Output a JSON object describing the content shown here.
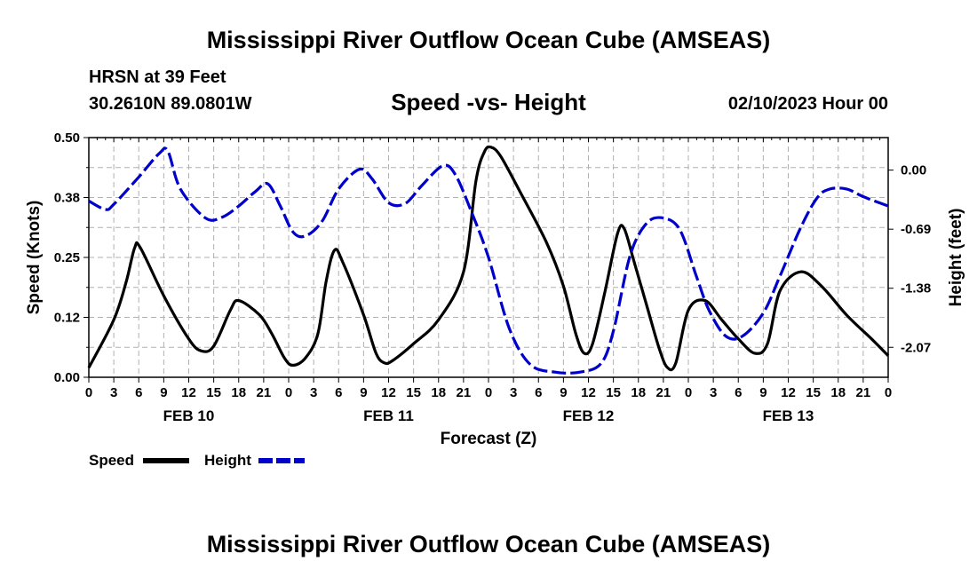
{
  "header": {
    "title": "Mississippi River Outflow Ocean Cube (AMSEAS)",
    "station": "HRSN at 39 Feet",
    "coords": "30.2610N  89.0801W",
    "subtitle": "Speed -vs- Height",
    "datetime": "02/10/2023 Hour 00"
  },
  "footer": {
    "title": "Mississippi River Outflow Ocean Cube (AMSEAS)"
  },
  "legend": {
    "speed_label": "Speed",
    "height_label": "Height"
  },
  "chart_data": {
    "type": "line",
    "xlabel": "Forecast (Z)",
    "ylabel_left": "Speed (Knots)",
    "ylabel_right": "Height (feet)",
    "x_range_hours": [
      0,
      96
    ],
    "x_tick_labels": [
      "0",
      "3",
      "6",
      "9",
      "12",
      "15",
      "18",
      "21",
      "0",
      "3",
      "6",
      "9",
      "12",
      "15",
      "18",
      "21",
      "0",
      "3",
      "6",
      "9",
      "12",
      "15",
      "18",
      "21",
      "0",
      "3",
      "6",
      "9",
      "12",
      "15",
      "18",
      "21",
      "0"
    ],
    "day_labels": [
      {
        "label": "FEB 10",
        "hour": 12
      },
      {
        "label": "FEB 11",
        "hour": 36
      },
      {
        "label": "FEB 12",
        "hour": 60
      },
      {
        "label": "FEB 13",
        "hour": 84
      }
    ],
    "y_left": {
      "min": 0,
      "max": 0.5,
      "ticks": [
        0,
        0.125,
        0.25,
        0.375,
        0.5
      ],
      "tick_labels": [
        "0.00",
        "0.12",
        "0.25",
        "0.38",
        "0.50"
      ]
    },
    "y_right": {
      "min": -2.42,
      "max": 0.38,
      "ticks": [
        0.0,
        -0.69,
        -1.38,
        -2.07
      ],
      "tick_labels": [
        "0.00",
        "-0.69",
        "-1.38",
        "-2.07"
      ]
    },
    "grid": true,
    "colors": {
      "speed": "#000000",
      "height": "#0000cc",
      "grid": "#b0b0b0"
    },
    "series": [
      {
        "name": "Speed",
        "axis": "left",
        "style": "solid",
        "points": [
          [
            0,
            0.02
          ],
          [
            3,
            0.12
          ],
          [
            4.5,
            0.2
          ],
          [
            5.5,
            0.27
          ],
          [
            6.2,
            0.27
          ],
          [
            9,
            0.17
          ],
          [
            12,
            0.08
          ],
          [
            13.5,
            0.055
          ],
          [
            15,
            0.065
          ],
          [
            17,
            0.14
          ],
          [
            18,
            0.16
          ],
          [
            20.5,
            0.13
          ],
          [
            22,
            0.09
          ],
          [
            23.5,
            0.04
          ],
          [
            24.5,
            0.025
          ],
          [
            26,
            0.04
          ],
          [
            27.5,
            0.09
          ],
          [
            28.5,
            0.2
          ],
          [
            29.5,
            0.265
          ],
          [
            30.5,
            0.24
          ],
          [
            33,
            0.13
          ],
          [
            34.5,
            0.05
          ],
          [
            35.5,
            0.03
          ],
          [
            36.5,
            0.035
          ],
          [
            39,
            0.07
          ],
          [
            42,
            0.12
          ],
          [
            45,
            0.22
          ],
          [
            46.5,
            0.41
          ],
          [
            47.5,
            0.47
          ],
          [
            48.3,
            0.48
          ],
          [
            49.5,
            0.46
          ],
          [
            52,
            0.38
          ],
          [
            55,
            0.28
          ],
          [
            57,
            0.19
          ],
          [
            58.5,
            0.09
          ],
          [
            59.5,
            0.05
          ],
          [
            60.5,
            0.07
          ],
          [
            62,
            0.18
          ],
          [
            63.5,
            0.3
          ],
          [
            64.3,
            0.31
          ],
          [
            65.5,
            0.24
          ],
          [
            67,
            0.15
          ],
          [
            68.5,
            0.06
          ],
          [
            69.5,
            0.02
          ],
          [
            70.5,
            0.03
          ],
          [
            72,
            0.14
          ],
          [
            74,
            0.16
          ],
          [
            76,
            0.12
          ],
          [
            78,
            0.08
          ],
          [
            80,
            0.05
          ],
          [
            81.5,
            0.07
          ],
          [
            83,
            0.18
          ],
          [
            85.5,
            0.22
          ],
          [
            88,
            0.19
          ],
          [
            91,
            0.13
          ],
          [
            94,
            0.08
          ],
          [
            96,
            0.045
          ]
        ]
      },
      {
        "name": "Height",
        "axis": "right",
        "style": "dashed",
        "points": [
          [
            0,
            -0.36
          ],
          [
            2,
            -0.46
          ],
          [
            3,
            -0.4
          ],
          [
            6,
            -0.08
          ],
          [
            8.5,
            0.2
          ],
          [
            9.5,
            0.22
          ],
          [
            11,
            -0.22
          ],
          [
            14,
            -0.56
          ],
          [
            16,
            -0.55
          ],
          [
            18,
            -0.42
          ],
          [
            20,
            -0.25
          ],
          [
            21.5,
            -0.16
          ],
          [
            23,
            -0.42
          ],
          [
            24.5,
            -0.72
          ],
          [
            26,
            -0.77
          ],
          [
            28,
            -0.6
          ],
          [
            30,
            -0.22
          ],
          [
            32.5,
            0.01
          ],
          [
            34,
            -0.1
          ],
          [
            36,
            -0.38
          ],
          [
            38,
            -0.39
          ],
          [
            40,
            -0.18
          ],
          [
            42.5,
            0.05
          ],
          [
            44,
            -0.05
          ],
          [
            46,
            -0.5
          ],
          [
            48,
            -1.02
          ],
          [
            50.5,
            -1.85
          ],
          [
            53,
            -2.27
          ],
          [
            56,
            -2.36
          ],
          [
            59,
            -2.36
          ],
          [
            61.5,
            -2.26
          ],
          [
            63,
            -1.88
          ],
          [
            65,
            -1.0
          ],
          [
            67,
            -0.62
          ],
          [
            69,
            -0.56
          ],
          [
            71,
            -0.7
          ],
          [
            73,
            -1.25
          ],
          [
            74.5,
            -1.64
          ],
          [
            76.5,
            -1.94
          ],
          [
            78.5,
            -1.94
          ],
          [
            81,
            -1.67
          ],
          [
            83,
            -1.24
          ],
          [
            85.5,
            -0.67
          ],
          [
            87.5,
            -0.32
          ],
          [
            89,
            -0.22
          ],
          [
            91,
            -0.22
          ],
          [
            93,
            -0.31
          ],
          [
            96,
            -0.42
          ]
        ]
      }
    ]
  }
}
